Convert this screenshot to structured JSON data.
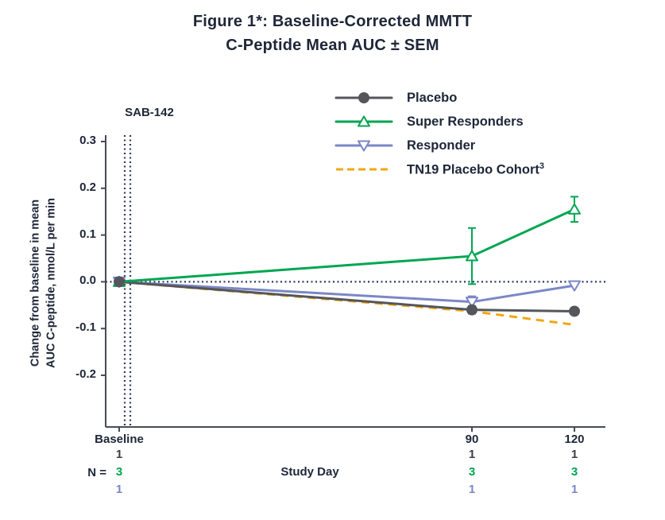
{
  "title": {
    "line1": "Figure 1*: Baseline-Corrected MMTT",
    "line2": "C-Peptide Mean AUC ± SEM"
  },
  "annotation": {
    "sab": "SAB-142"
  },
  "axes": {
    "y_label_line1": "Change from baseline in mean",
    "y_label_line2": "AUC C-peptide, nmol/L per min",
    "x_label": "Study Day",
    "y_tick_labels": [
      "0.3",
      "0.2",
      "0.1",
      "0.0",
      "-0.1",
      "-0.2"
    ],
    "x_tick_labels": [
      "Baseline",
      "90",
      "120"
    ]
  },
  "n_row": {
    "label": "N =",
    "colors": [
      "#3a3f49",
      "#00a651",
      "#7b87c6"
    ],
    "columns": [
      [
        "1",
        "3",
        "1"
      ],
      [
        "1",
        "3",
        "1"
      ],
      [
        "1",
        "3",
        "1"
      ]
    ]
  },
  "colors": {
    "text": "#1e2638",
    "dotted": "#2c3a66",
    "axis": "#454b57",
    "background": "#ffffff"
  },
  "chart_data": {
    "type": "line",
    "title": "Figure 1*: Baseline-Corrected MMTT C-Peptide Mean AUC ± SEM",
    "xlabel": "Study Day",
    "ylabel": "Change from baseline in mean AUC C-peptide, nmol/L per min",
    "x": [
      0,
      90,
      120
    ],
    "x_tick_labels": [
      "Baseline",
      "90",
      "120"
    ],
    "ylim": [
      -0.31,
      0.31
    ],
    "grid": false,
    "legend_position": "top-right",
    "reference": {
      "horizontal_dotted_y": 0,
      "vertical_dotted_at_x": 0,
      "vertical_label": "SAB-142"
    },
    "series": [
      {
        "name": "Placebo",
        "color": "#54565b",
        "marker": "circle-filled",
        "line": "solid",
        "values": [
          0,
          -0.06,
          -0.063
        ],
        "sem": [
          0,
          0.008,
          0
        ]
      },
      {
        "name": "Super Responders",
        "color": "#00a651",
        "marker": "triangle-up-open",
        "line": "solid",
        "values": [
          0,
          0.055,
          0.155
        ],
        "sem": [
          0,
          0.06,
          0.027
        ]
      },
      {
        "name": "Responder",
        "color": "#7b87c6",
        "marker": "triangle-down-open",
        "line": "solid",
        "values": [
          0,
          -0.043,
          -0.008
        ],
        "sem": [
          0,
          0.012,
          0
        ]
      },
      {
        "name": "TN19 Placebo Cohort",
        "sup": "3",
        "color": "#f3a712",
        "marker": "none",
        "line": "dashed",
        "values": [
          0,
          -0.063,
          -0.092
        ],
        "sem": [
          0,
          0,
          0
        ]
      }
    ]
  }
}
